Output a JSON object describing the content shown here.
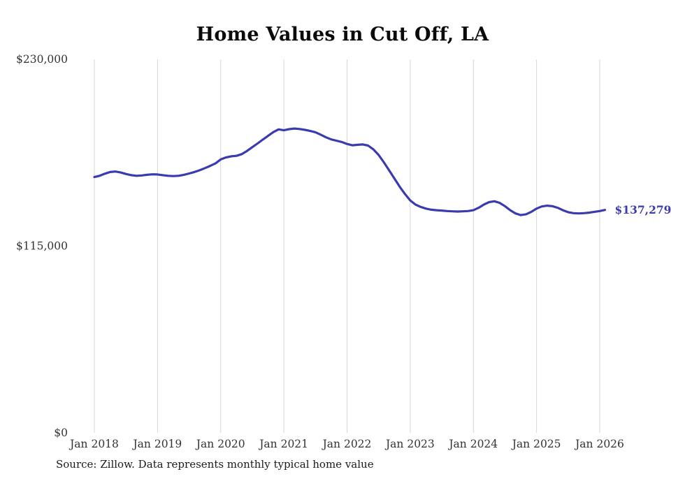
{
  "page": {
    "title": "Home Values in Cut Off, LA",
    "source_note": "Source: Zillow. Data represents monthly typical home value"
  },
  "chart_data": {
    "type": "line",
    "title": "Home Values in Cut Off, LA",
    "xlabel": "",
    "ylabel": "",
    "ylim": [
      0,
      230000
    ],
    "grid": "vertical-only",
    "legend": "none",
    "line_color": "#3b3bb0",
    "gridline_color": "#d6d6d6",
    "y_ticks": [
      {
        "label": "$0",
        "value": 0
      },
      {
        "label": "$115,000",
        "value": 115000
      },
      {
        "label": "$230,000",
        "value": 230000
      }
    ],
    "x_ticks": [
      {
        "label": "Jan 2018",
        "month_index": 0
      },
      {
        "label": "Jan 2019",
        "month_index": 12
      },
      {
        "label": "Jan 2020",
        "month_index": 24
      },
      {
        "label": "Jan 2021",
        "month_index": 36
      },
      {
        "label": "Jan 2022",
        "month_index": 48
      },
      {
        "label": "Jan 2023",
        "month_index": 60
      },
      {
        "label": "Jan 2024",
        "month_index": 72
      },
      {
        "label": "Jan 2025",
        "month_index": 84
      },
      {
        "label": "Jan 2026",
        "month_index": 96
      }
    ],
    "series": [
      {
        "name": "Monthly typical home value",
        "start_month": "2018-01",
        "end_month": "2026-02",
        "values": [
          157500,
          158300,
          159600,
          160600,
          160900,
          160300,
          159400,
          158700,
          158300,
          158500,
          158900,
          159200,
          159100,
          158700,
          158300,
          158100,
          158300,
          158900,
          159700,
          160600,
          161700,
          163000,
          164400,
          165900,
          168400,
          169600,
          170300,
          170600,
          171600,
          173600,
          175900,
          178200,
          180600,
          182900,
          185200,
          186900,
          186300,
          187000,
          187400,
          187100,
          186600,
          185900,
          185100,
          183600,
          182000,
          180700,
          179900,
          179100,
          177900,
          177100,
          177400,
          177600,
          176900,
          174600,
          171100,
          166600,
          161600,
          156600,
          151600,
          147100,
          143100,
          140600,
          139100,
          138100,
          137400,
          137100,
          136900,
          136600,
          136400,
          136300,
          136400,
          136600,
          137100,
          138600,
          140600,
          142100,
          142600,
          141600,
          139600,
          137100,
          135100,
          134100,
          134600,
          136100,
          138100,
          139400,
          139900,
          139600,
          138600,
          137100,
          135900,
          135300,
          135100,
          135300,
          135600,
          136100,
          136600,
          137279
        ]
      }
    ],
    "end_annotation": "$137,279"
  }
}
